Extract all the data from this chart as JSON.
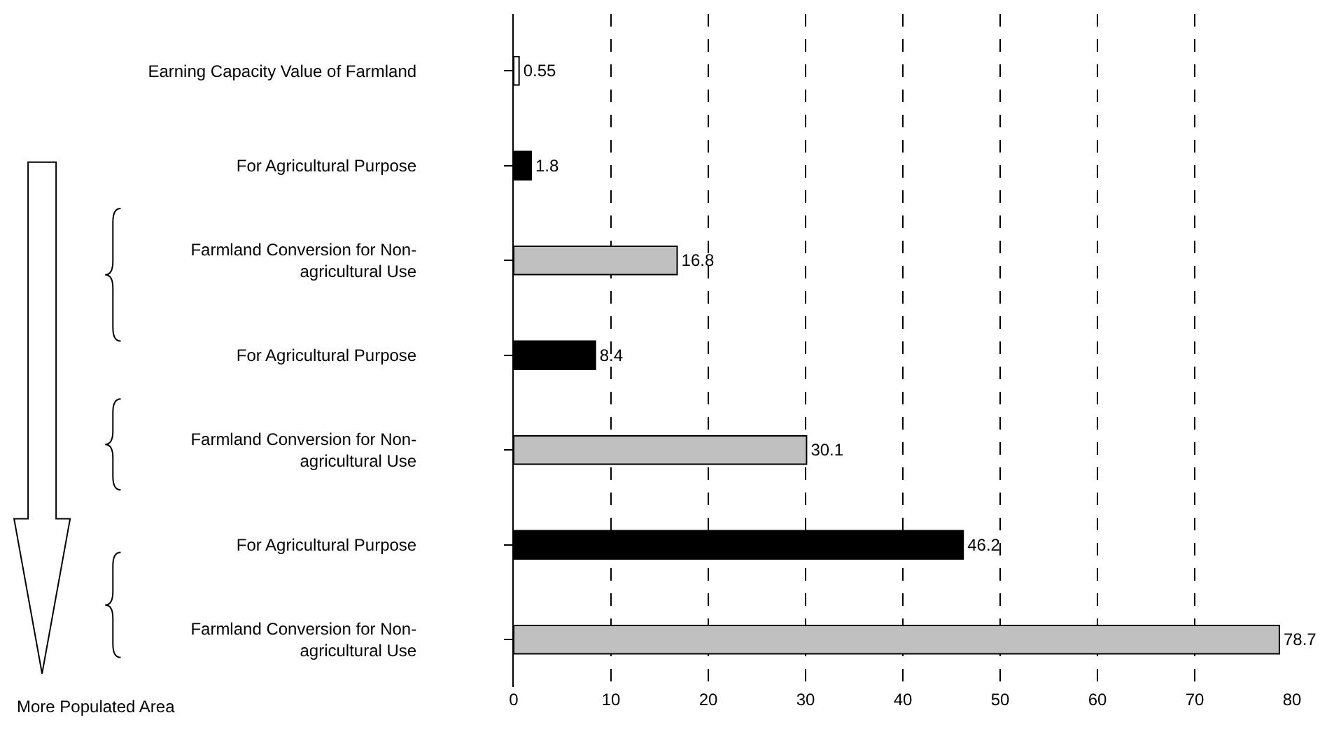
{
  "chart_data": {
    "type": "bar",
    "orientation": "horizontal",
    "categories": [
      "Earning Capacity Value of Farmland",
      "For Agricultural Purpose",
      "Farmland Conversion for Non-agricultural Use",
      "For Agricultural Purpose",
      "Farmland Conversion for Non-agricultural Use",
      "For Agricultural Purpose",
      "Farmland Conversion for Non-agricultural Use"
    ],
    "values": [
      0.55,
      1.8,
      16.8,
      8.4,
      30.1,
      46.2,
      78.7
    ],
    "colors": [
      "#ffffff",
      "#000000",
      "#c0c0c0",
      "#000000",
      "#c0c0c0",
      "#000000",
      "#c0c0c0"
    ],
    "xlim": [
      0,
      80
    ],
    "xticks": [
      0,
      10,
      20,
      30,
      40,
      50,
      60,
      70,
      80
    ],
    "grid": "x",
    "data_labels": true,
    "annotations": [
      "More Populated Area"
    ]
  }
}
